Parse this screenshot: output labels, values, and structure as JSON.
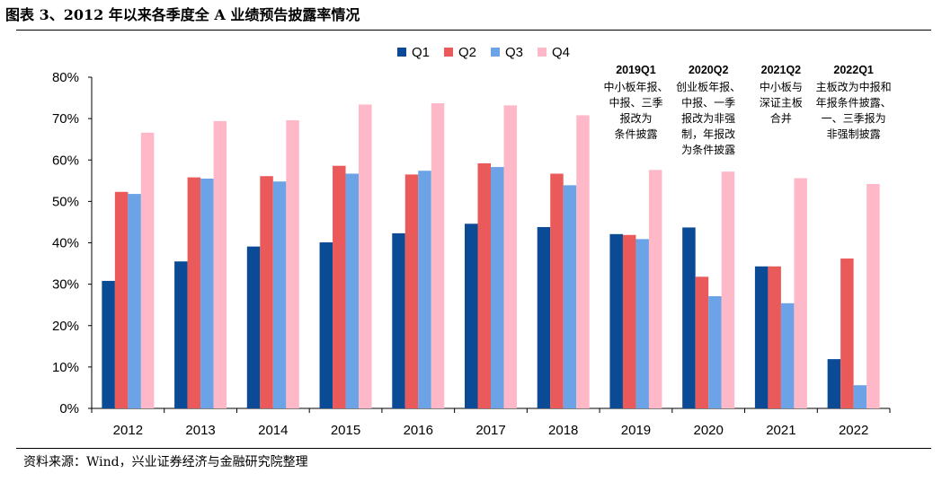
{
  "page": {
    "title": "图表 3、2012 年以来各季度全 A 业绩预告披露率情况",
    "source": "资料来源：Wind，兴业证券经济与金融研究院整理"
  },
  "colors": {
    "Q1": "#0B4A94",
    "Q2": "#EB5A5A",
    "Q3": "#6BA3E6",
    "Q4": "#FFB8C8"
  },
  "chart_data": {
    "type": "bar",
    "categories": [
      "2012",
      "2013",
      "2014",
      "2015",
      "2016",
      "2017",
      "2018",
      "2019",
      "2020",
      "2021",
      "2022"
    ],
    "series": [
      {
        "name": "Q1",
        "values": [
          30.8,
          35.5,
          39.1,
          40.1,
          42.3,
          44.6,
          43.8,
          42.1,
          43.7,
          34.3,
          11.9
        ]
      },
      {
        "name": "Q2",
        "values": [
          52.3,
          55.8,
          56.1,
          58.6,
          56.5,
          59.2,
          56.7,
          41.9,
          31.8,
          34.3,
          36.2
        ]
      },
      {
        "name": "Q3",
        "values": [
          51.8,
          55.5,
          54.8,
          56.7,
          57.4,
          58.3,
          53.9,
          40.9,
          27.1,
          25.4,
          5.6
        ]
      },
      {
        "name": "Q4",
        "values": [
          66.6,
          69.4,
          69.6,
          73.4,
          73.7,
          73.2,
          70.8,
          57.6,
          57.2,
          55.6,
          54.2
        ]
      }
    ],
    "ylim": [
      0,
      80
    ],
    "yticks": [
      "0%",
      "10%",
      "20%",
      "30%",
      "40%",
      "50%",
      "60%",
      "70%",
      "80%"
    ],
    "legend_position": "top",
    "grid": false,
    "annotations": [
      {
        "category": "2019",
        "title": "2019Q1",
        "lines": [
          "中小板年报、",
          "中报、三季",
          "报改为",
          "条件披露"
        ]
      },
      {
        "category": "2020",
        "title": "2020Q2",
        "lines": [
          "创业板年报、",
          "中报、一季",
          "报改为非强",
          "制，年报改",
          "为条件披露"
        ]
      },
      {
        "category": "2021",
        "title": "2021Q2",
        "lines": [
          "中小板与",
          "深证主板",
          "合并"
        ]
      },
      {
        "category": "2022",
        "title": "2022Q1",
        "lines": [
          "主板改为中报和",
          "年报条件披露、",
          "一、三季报为",
          "非强制披露"
        ]
      }
    ]
  }
}
